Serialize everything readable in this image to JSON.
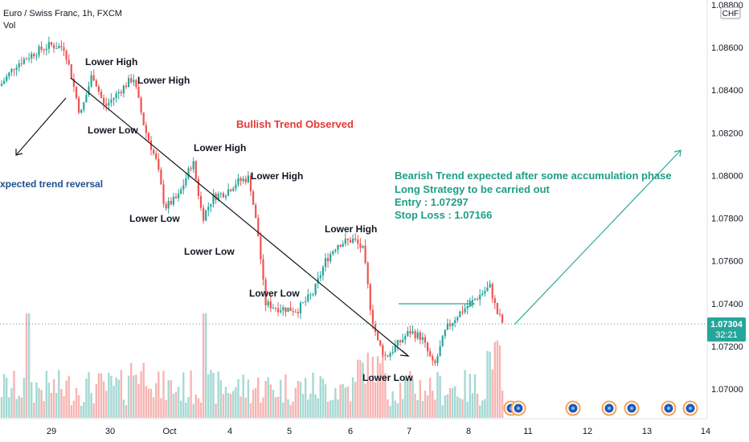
{
  "header": {
    "symbol": "Euro / Swiss Franc, 1h, FXCM",
    "volume_label": "Vol"
  },
  "currency_tag": "CHF",
  "price_tag": {
    "value": "1.07304",
    "countdown": "32:21",
    "color": "#26a69a"
  },
  "colors": {
    "up": "#26a69a",
    "down": "#ef5350",
    "accent_green": "#26a69a",
    "red_text": "#e53935",
    "blue_text": "#1e4f8f"
  },
  "annotations": {
    "lower_high_1": "Lower High",
    "lower_high_2": "Lower High",
    "lower_low_1": "Lower Low",
    "lower_high_3": "Lower High",
    "lower_high_4": "Lower High",
    "lower_low_2": "Lower Low",
    "lower_low_3": "Lower Low",
    "lower_low_4": "Lower Low",
    "lower_high_5": "Lower High",
    "lower_low_5": "Lower Low",
    "bullish_trend": "Bullish Trend Observed",
    "trend_reversal": "xpected trend reversal",
    "plan_line_1": "Bearish Trend expected after some accumulation phase",
    "plan_line_2": "Long Strategy to be carried out",
    "plan_line_3": "Entry : 1.07297",
    "plan_line_4": "Stop Loss : 1.07166"
  },
  "chart_data": {
    "type": "candlestick",
    "title": "Euro / Swiss Franc, 1h, FXCM",
    "y_axis": {
      "ticks": [
        "1.08800",
        "1.08600",
        "1.08400",
        "1.08200",
        "1.08000",
        "1.07800",
        "1.07600",
        "1.07400",
        "1.07200",
        "1.07000"
      ],
      "ylim": [
        1.0688,
        1.088
      ]
    },
    "x_axis": {
      "ticks": [
        "29",
        "30",
        "Oct",
        "4",
        "5",
        "6",
        "7",
        "8",
        "11",
        "12",
        "13",
        "14"
      ]
    },
    "last_price": 1.07304,
    "entry": 1.07297,
    "stop_loss": 1.07166,
    "grid": false
  }
}
